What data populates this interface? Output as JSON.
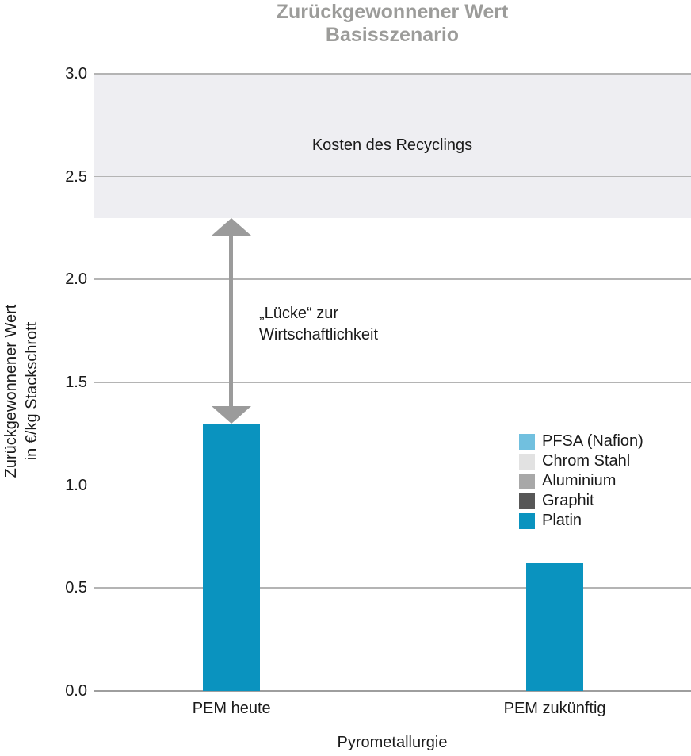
{
  "chart_data": {
    "type": "bar",
    "title": "Zurückgewonnener Wert",
    "subtitle": "Basisszenario",
    "title_color": "#9c9c9a",
    "categories": [
      "PEM heute",
      "PEM zukünftig"
    ],
    "values": [
      1.3,
      0.62
    ],
    "bar_color": "#0a93bf",
    "xlabel": "Pyrometallurgie",
    "ylabel": "Zurückgewonnener Wert in €/kg Stackschrott",
    "ylabel_line1": "Zurückgewonnener Wert",
    "ylabel_line2": "in €/kg Stackschrott",
    "ylim": [
      0.0,
      3.0
    ],
    "yticks": [
      0.0,
      0.5,
      1.0,
      1.5,
      2.0,
      2.5,
      3.0
    ],
    "ytick_labels": [
      "0.0",
      "0.5",
      "1.0",
      "1.5",
      "2.0",
      "2.5",
      "3.0"
    ],
    "grid": true,
    "gridline_color": "#b4b4b4",
    "band": {
      "from": 2.3,
      "to": 3.0,
      "label": "Kosten des Recyclings",
      "color": "#eeeef2"
    },
    "gap_arrow": {
      "from": 1.3,
      "to": 2.3,
      "label_line1": "„Lücke“ zur",
      "label_line2": "Wirtschaftlichkeit",
      "color": "#9b9b9b"
    },
    "legend": {
      "position": "center-right",
      "items": [
        {
          "label": "PFSA (Nafion)",
          "color": "#71c0df"
        },
        {
          "label": "Chrom Stahl",
          "color": "#e2e2e2"
        },
        {
          "label": "Aluminium",
          "color": "#a8a8a8"
        },
        {
          "label": "Graphit",
          "color": "#575757"
        },
        {
          "label": "Platin",
          "color": "#0a93bf"
        }
      ]
    }
  }
}
